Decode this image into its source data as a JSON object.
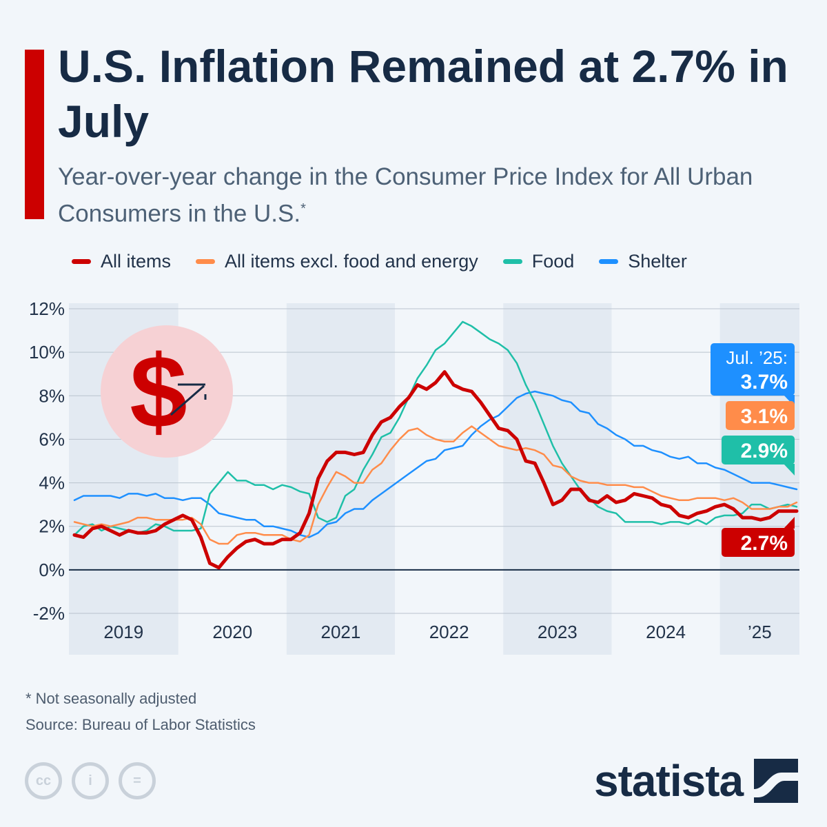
{
  "header": {
    "title": "U.S. Inflation Remained at 2.7% in July",
    "subtitle": "Year-over-year change in the Consumer Price Index for All Urban Consumers in the U.S.",
    "subtitle_mark": "*"
  },
  "legend": [
    {
      "label": "All items",
      "color": "#cc0000"
    },
    {
      "label": "All items excl. food and energy",
      "color": "#ff8c4a"
    },
    {
      "label": "Food",
      "color": "#1fbfa8"
    },
    {
      "label": "Shelter",
      "color": "#1e90ff"
    }
  ],
  "chart_data": {
    "type": "line",
    "title": "Year-over-year change in the Consumer Price Index for All Urban Consumers in the U.S.",
    "xlabel": "",
    "ylabel": "",
    "ylim": [
      -2,
      12
    ],
    "y_ticks": [
      -2,
      0,
      2,
      4,
      6,
      8,
      10,
      12
    ],
    "y_tick_labels": [
      "-2%",
      "0%",
      "2%",
      "4%",
      "6%",
      "8%",
      "10%",
      "12%"
    ],
    "x_period": "Jan 2019 – Jul 2025, monthly",
    "year_labels": [
      "2019",
      "2020",
      "2021",
      "2022",
      "2023",
      "2024",
      "’25"
    ],
    "series": [
      {
        "name": "All items",
        "color": "#cc0000",
        "values": [
          1.6,
          1.5,
          1.9,
          2.0,
          1.8,
          1.6,
          1.8,
          1.7,
          1.7,
          1.8,
          2.1,
          2.3,
          2.5,
          2.3,
          1.5,
          0.3,
          0.1,
          0.6,
          1.0,
          1.3,
          1.4,
          1.2,
          1.2,
          1.4,
          1.4,
          1.7,
          2.6,
          4.2,
          5.0,
          5.4,
          5.4,
          5.3,
          5.4,
          6.2,
          6.8,
          7.0,
          7.5,
          7.9,
          8.5,
          8.3,
          8.6,
          9.1,
          8.5,
          8.3,
          8.2,
          7.7,
          7.1,
          6.5,
          6.4,
          6.0,
          5.0,
          4.9,
          4.0,
          3.0,
          3.2,
          3.7,
          3.7,
          3.2,
          3.1,
          3.4,
          3.1,
          3.2,
          3.5,
          3.4,
          3.3,
          3.0,
          2.9,
          2.5,
          2.4,
          2.6,
          2.7,
          2.9,
          3.0,
          2.8,
          2.4,
          2.4,
          2.3,
          2.4,
          2.7,
          2.7,
          2.7
        ]
      },
      {
        "name": "All items excl. food and energy",
        "color": "#ff8c4a",
        "values": [
          2.2,
          2.1,
          2.0,
          2.1,
          2.0,
          2.1,
          2.2,
          2.4,
          2.4,
          2.3,
          2.3,
          2.3,
          2.3,
          2.4,
          2.1,
          1.4,
          1.2,
          1.2,
          1.6,
          1.7,
          1.7,
          1.6,
          1.6,
          1.6,
          1.4,
          1.3,
          1.6,
          3.0,
          3.8,
          4.5,
          4.3,
          4.0,
          4.0,
          4.6,
          4.9,
          5.5,
          6.0,
          6.4,
          6.5,
          6.2,
          6.0,
          5.9,
          5.9,
          6.3,
          6.6,
          6.3,
          6.0,
          5.7,
          5.6,
          5.5,
          5.6,
          5.5,
          5.3,
          4.8,
          4.7,
          4.3,
          4.1,
          4.0,
          4.0,
          3.9,
          3.9,
          3.9,
          3.8,
          3.8,
          3.6,
          3.4,
          3.3,
          3.2,
          3.2,
          3.3,
          3.3,
          3.3,
          3.2,
          3.3,
          3.1,
          2.8,
          2.8,
          2.8,
          2.9,
          2.9,
          3.1
        ]
      },
      {
        "name": "Food",
        "color": "#1fbfa8",
        "values": [
          1.6,
          2.0,
          2.1,
          1.8,
          2.0,
          1.9,
          1.8,
          1.7,
          1.8,
          2.1,
          2.0,
          1.8,
          1.8,
          1.8,
          1.9,
          3.5,
          4.0,
          4.5,
          4.1,
          4.1,
          3.9,
          3.9,
          3.7,
          3.9,
          3.8,
          3.6,
          3.5,
          2.4,
          2.2,
          2.4,
          3.4,
          3.7,
          4.6,
          5.3,
          6.1,
          6.3,
          7.0,
          7.9,
          8.8,
          9.4,
          10.1,
          10.4,
          10.9,
          11.4,
          11.2,
          10.9,
          10.6,
          10.4,
          10.1,
          9.5,
          8.5,
          7.7,
          6.7,
          5.7,
          4.9,
          4.3,
          3.7,
          3.3,
          2.9,
          2.7,
          2.6,
          2.2,
          2.2,
          2.2,
          2.2,
          2.1,
          2.2,
          2.2,
          2.1,
          2.3,
          2.1,
          2.4,
          2.5,
          2.5,
          2.6,
          3.0,
          3.0,
          2.8,
          2.9,
          3.0,
          2.9
        ]
      },
      {
        "name": "Shelter",
        "color": "#1e90ff",
        "values": [
          3.2,
          3.4,
          3.4,
          3.4,
          3.4,
          3.3,
          3.5,
          3.5,
          3.4,
          3.5,
          3.3,
          3.3,
          3.2,
          3.3,
          3.3,
          3.0,
          2.6,
          2.5,
          2.4,
          2.3,
          2.3,
          2.0,
          2.0,
          1.9,
          1.8,
          1.6,
          1.5,
          1.7,
          2.1,
          2.2,
          2.6,
          2.8,
          2.8,
          3.2,
          3.5,
          3.8,
          4.1,
          4.4,
          4.7,
          5.0,
          5.1,
          5.5,
          5.6,
          5.7,
          6.2,
          6.6,
          6.9,
          7.1,
          7.5,
          7.9,
          8.1,
          8.2,
          8.1,
          8.0,
          7.8,
          7.7,
          7.3,
          7.2,
          6.7,
          6.5,
          6.2,
          6.0,
          5.7,
          5.7,
          5.5,
          5.4,
          5.2,
          5.1,
          5.2,
          4.9,
          4.9,
          4.7,
          4.6,
          4.4,
          4.2,
          4.0,
          4.0,
          4.0,
          3.9,
          3.8,
          3.7
        ]
      }
    ],
    "annotations": [
      {
        "series": "Shelter",
        "lines": [
          "Jul. ’25:",
          "3.7%"
        ],
        "color": "#1e90ff"
      },
      {
        "series": "All items excl. food and energy",
        "lines": [
          "3.1%"
        ],
        "color": "#ff8c4a"
      },
      {
        "series": "Food",
        "lines": [
          "2.9%"
        ],
        "color": "#1fbfa8"
      },
      {
        "series": "All items",
        "lines": [
          "2.7%"
        ],
        "color": "#cc0000"
      }
    ]
  },
  "icon": {
    "symbol": "$"
  },
  "footer": {
    "footnote": "* Not seasonally adjusted",
    "source": "Source: Bureau of Labor Statistics",
    "brand": "statista",
    "cc_icons": [
      "cc",
      "i",
      "="
    ]
  }
}
